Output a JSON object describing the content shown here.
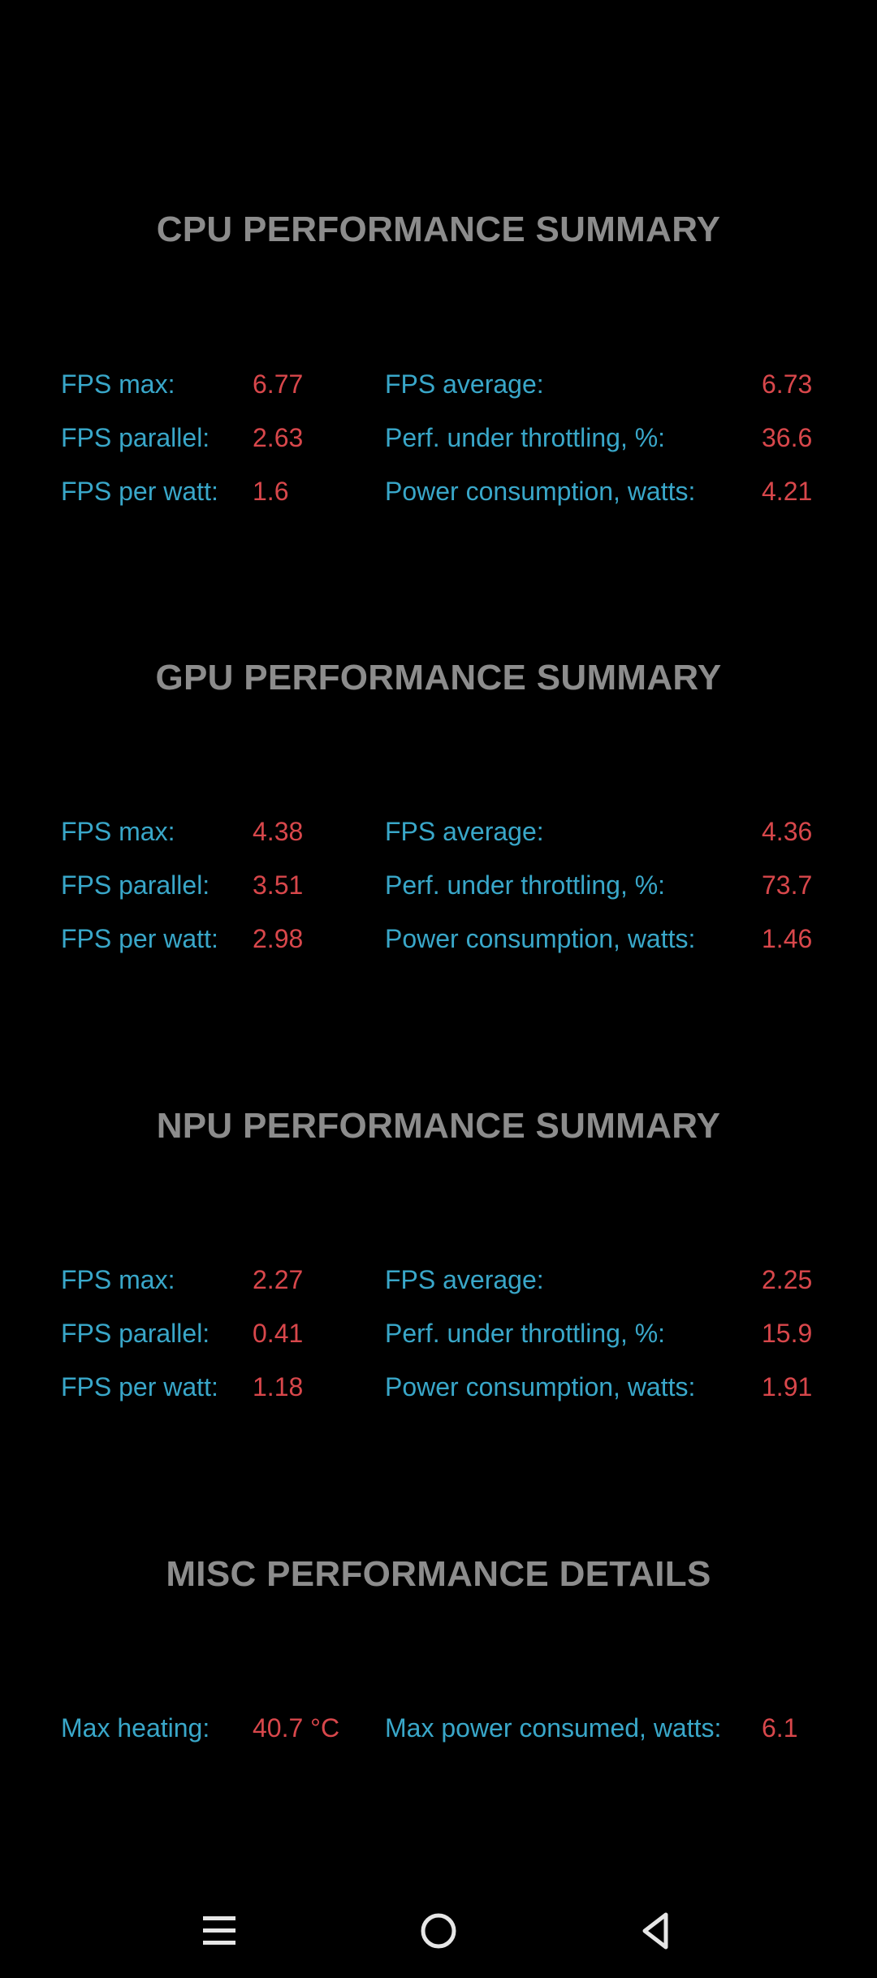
{
  "sections": [
    {
      "title": "CPU PERFORMANCE SUMMARY",
      "rows": [
        {
          "label1": "FPS max:",
          "value1": "6.77",
          "label2": "FPS average:",
          "value2": "6.73"
        },
        {
          "label1": "FPS parallel:",
          "value1": "2.63",
          "label2": "Perf. under throttling, %:",
          "value2": "36.6"
        },
        {
          "label1": "FPS per watt:",
          "value1": "1.6",
          "label2": "Power consumption, watts:",
          "value2": "4.21"
        }
      ]
    },
    {
      "title": "GPU PERFORMANCE SUMMARY",
      "rows": [
        {
          "label1": "FPS max:",
          "value1": "4.38",
          "label2": "FPS average:",
          "value2": "4.36"
        },
        {
          "label1": "FPS parallel:",
          "value1": "3.51",
          "label2": "Perf. under throttling, %:",
          "value2": "73.7"
        },
        {
          "label1": "FPS per watt:",
          "value1": "2.98",
          "label2": "Power consumption, watts:",
          "value2": "1.46"
        }
      ]
    },
    {
      "title": "NPU PERFORMANCE SUMMARY",
      "rows": [
        {
          "label1": "FPS max:",
          "value1": "2.27",
          "label2": "FPS average:",
          "value2": "2.25"
        },
        {
          "label1": "FPS parallel:",
          "value1": "0.41",
          "label2": "Perf. under throttling, %:",
          "value2": "15.9"
        },
        {
          "label1": "FPS per watt:",
          "value1": "1.18",
          "label2": "Power consumption, watts:",
          "value2": "1.91"
        }
      ]
    },
    {
      "title": "MISC PERFORMANCE DETAILS",
      "rows": [
        {
          "label1": "Max heating:",
          "value1": "40.7 °C",
          "label2": "Max power consumed, watts:",
          "value2": "6.1"
        }
      ]
    }
  ],
  "navbar": {
    "buttons": [
      {
        "name": "menu-icon"
      },
      {
        "name": "home-circle-icon"
      },
      {
        "name": "back-triangle-icon"
      }
    ]
  },
  "colors": {
    "background": "#000000",
    "title": "#8c8c8c",
    "label": "#39a7c9",
    "value": "#d8474b",
    "nav_icon": "#e6e6e6"
  }
}
